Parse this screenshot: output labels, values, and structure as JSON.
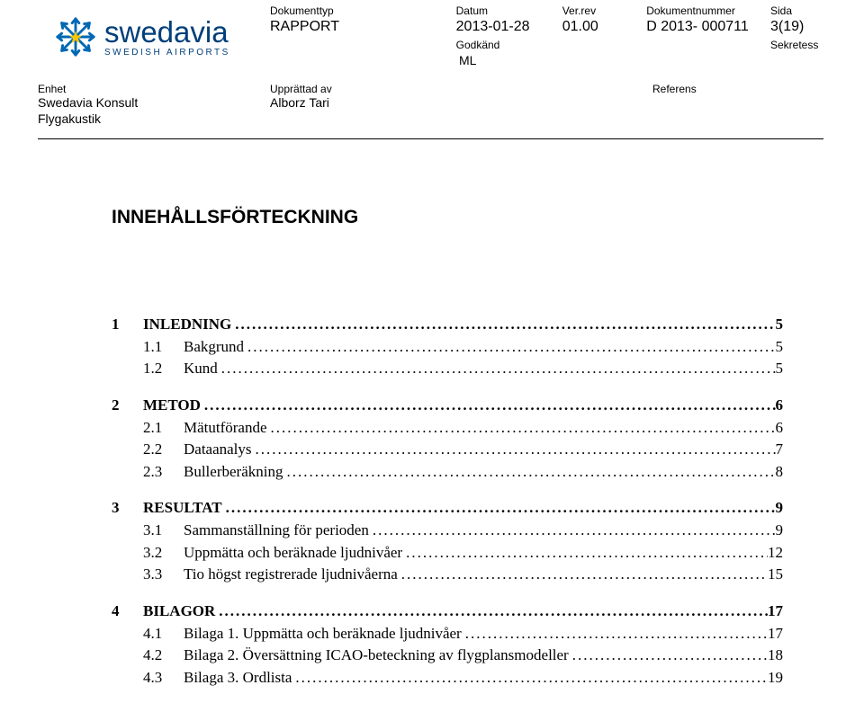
{
  "logo": {
    "brand": "swedavia",
    "subtitle": "SWEDISH AIRPORTS",
    "brand_color": "#003f7a",
    "snowflake_color": "#0068b3",
    "star_color": "#f9c600"
  },
  "header": {
    "col1_label": "Dokumenttyp",
    "col1_value": "RAPPORT",
    "col2_label": "Datum",
    "col2_value": "2013-01-28",
    "col2_sub_label": "Godkänd",
    "col2_sub_value": "ML",
    "col3_label": "Ver.rev",
    "col3_value": "01.00",
    "col4_label": "Dokumentnummer",
    "col4_value": "D 2013- 000711",
    "col5_label": "Sida",
    "col5_value": "3(19)",
    "col5_sub": "Sekretess",
    "enhet_label": "Enhet",
    "enhet_value_1": "Swedavia Konsult",
    "enhet_value_2": "Flygakustik",
    "upprattad_label": "Upprättad av",
    "upprattad_value": "Alborz Tari",
    "referens_label": "Referens"
  },
  "toc_title": "INNEHÅLLSFÖRTECKNING",
  "toc": [
    {
      "level": 1,
      "num": "1",
      "label": "INLEDNING",
      "page": "5"
    },
    {
      "level": 2,
      "num": "1.1",
      "label": "Bakgrund",
      "page": "5"
    },
    {
      "level": 2,
      "num": "1.2",
      "label": "Kund",
      "page": "5"
    },
    {
      "level": 1,
      "num": "2",
      "label": "METOD",
      "page": "6"
    },
    {
      "level": 2,
      "num": "2.1",
      "label": "Mätutförande",
      "page": "6"
    },
    {
      "level": 2,
      "num": "2.2",
      "label": "Dataanalys",
      "page": "7"
    },
    {
      "level": 2,
      "num": "2.3",
      "label": "Bullerberäkning",
      "page": "8"
    },
    {
      "level": 1,
      "num": "3",
      "label": "RESULTAT",
      "page": "9"
    },
    {
      "level": 2,
      "num": "3.1",
      "label": "Sammanställning för perioden",
      "page": "9"
    },
    {
      "level": 2,
      "num": "3.2",
      "label": "Uppmätta och beräknade ljudnivåer",
      "page": "12"
    },
    {
      "level": 2,
      "num": "3.3",
      "label": "Tio högst registrerade ljudnivåerna",
      "page": "15"
    },
    {
      "level": 1,
      "num": "4",
      "label": "BILAGOR",
      "page": "17"
    },
    {
      "level": 2,
      "num": "4.1",
      "label": "Bilaga 1. Uppmätta och beräknade ljudnivåer",
      "page": "17"
    },
    {
      "level": 2,
      "num": "4.2",
      "label": "Bilaga 2. Översättning ICAO-beteckning av flygplansmodeller",
      "page": "18"
    },
    {
      "level": 2,
      "num": "4.3",
      "label": "Bilaga 3. Ordlista",
      "page": "19"
    }
  ]
}
